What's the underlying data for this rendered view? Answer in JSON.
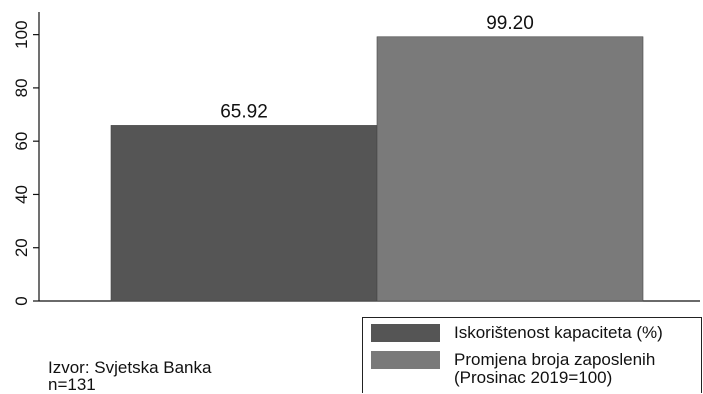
{
  "chart_data": {
    "type": "bar",
    "categories": [
      "Iskorištenost kapaciteta (%)",
      "Promjena broja zaposlenih (Prosinac 2019=100)"
    ],
    "values": [
      65.92,
      99.2
    ],
    "value_labels": [
      "65.92",
      "99.20"
    ],
    "colors": [
      "#555555",
      "#7a7a7a"
    ],
    "title": "",
    "xlabel": "",
    "ylabel": "",
    "ylim": [
      0,
      110
    ],
    "yticks": [
      0,
      20,
      40,
      60,
      80,
      100
    ],
    "grid": false,
    "legend_position": "bottom-right"
  },
  "legend": {
    "items": [
      {
        "label_lines": [
          "Iskorištenost kapaciteta (%)"
        ],
        "color": "#555555"
      },
      {
        "label_lines": [
          "Promjena broja zaposlenih",
          "(Prosinac 2019=100)"
        ],
        "color": "#7a7a7a"
      }
    ]
  },
  "notes": {
    "source": "Izvor: Svjetska Banka",
    "sample": "n=131"
  }
}
